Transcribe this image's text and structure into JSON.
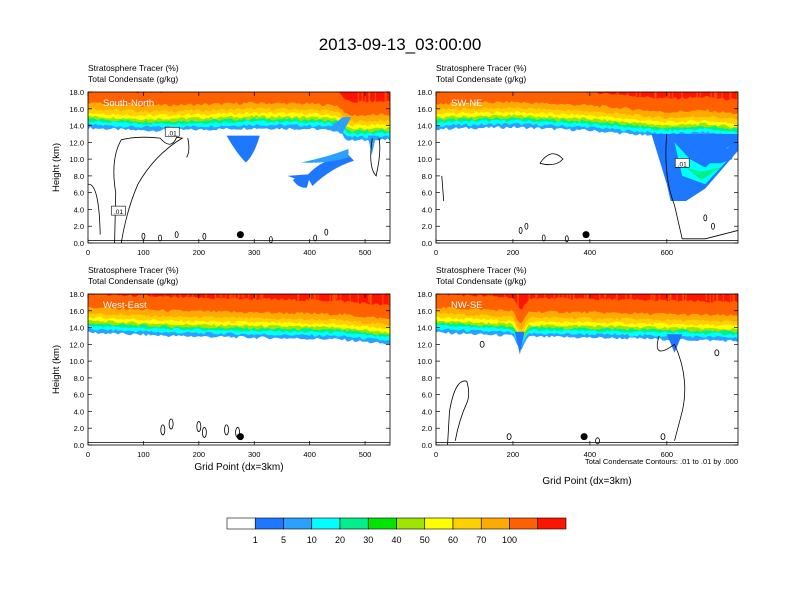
{
  "title": "2013-09-13_03:00:00",
  "footnote": "Total Condensate Contours: .01 to .01 by .000",
  "colorbar": {
    "colors": [
      "#ffffff",
      "#1e78ff",
      "#2ba0ff",
      "#00ffff",
      "#00f08c",
      "#00e600",
      "#9ee600",
      "#ffff00",
      "#ffd000",
      "#ffaa00",
      "#ff6000",
      "#ff1400"
    ],
    "labels": [
      "1",
      "5",
      "10",
      "20",
      "30",
      "40",
      "50",
      "60",
      "70",
      "100"
    ]
  },
  "chart_data": [
    {
      "type": "heatmap",
      "panel": "top-left",
      "label": "South-North",
      "field_title": "Stratosphere Tracer   (%)",
      "contour_title": "Total Condensate   (g/kg)",
      "ylabel": "Height (km)",
      "xlabel": "",
      "xlim": [
        0,
        545
      ],
      "ylim": [
        0,
        18
      ],
      "xticks": [
        "0",
        "100",
        "200",
        "300",
        "400",
        "500"
      ],
      "yticks": [
        "0.0",
        "2.0",
        "4.0",
        "6.0",
        "8.0",
        "10.0",
        "12.0",
        "14.0",
        "16.0",
        "18.0"
      ],
      "tropopause_km": [
        [
          0,
          14.5
        ],
        [
          100,
          14.2
        ],
        [
          200,
          14.3
        ],
        [
          300,
          14.5
        ],
        [
          400,
          14.4
        ],
        [
          450,
          14.2
        ],
        [
          470,
          13.0
        ],
        [
          545,
          13.1
        ]
      ],
      "contour_labels": [
        {
          "x": 55,
          "y": 3.8,
          "text": ".01"
        },
        {
          "x": 152,
          "y": 13.2,
          "text": ".01"
        }
      ],
      "marker": {
        "x": 275,
        "y": 1.0
      }
    },
    {
      "type": "heatmap",
      "panel": "top-right",
      "label": "SW-NE",
      "field_title": "Stratosphere Tracer   (%)",
      "contour_title": "Total Condensate   (g/kg)",
      "ylabel": "",
      "xlabel": "",
      "xlim": [
        0,
        785
      ],
      "ylim": [
        0,
        18
      ],
      "xticks": [
        "0",
        "200",
        "400",
        "600"
      ],
      "yticks": [
        "0.0",
        "2.0",
        "4.0",
        "6.0",
        "8.0",
        "10.0",
        "12.0",
        "14.0",
        "16.0",
        "18.0"
      ],
      "tropopause_km": [
        [
          0,
          14.4
        ],
        [
          200,
          14.6
        ],
        [
          400,
          14.2
        ],
        [
          600,
          13.4
        ],
        [
          700,
          13.6
        ],
        [
          785,
          13.2
        ]
      ],
      "contour_labels": [
        {
          "x": 640,
          "y": 9.5,
          "text": ".01"
        }
      ],
      "marker": {
        "x": 390,
        "y": 1.0
      }
    },
    {
      "type": "heatmap",
      "panel": "bottom-left",
      "label": "West-East",
      "field_title": "Stratosphere Tracer   (%)",
      "contour_title": "Total Condensate   (g/kg)",
      "ylabel": "Height (km)",
      "xlabel": "Grid Point (dx=3km)",
      "xlim": [
        0,
        545
      ],
      "ylim": [
        0,
        18
      ],
      "xticks": [
        "0",
        "100",
        "200",
        "300",
        "400",
        "500"
      ],
      "yticks": [
        "0.0",
        "2.0",
        "4.0",
        "6.0",
        "8.0",
        "10.0",
        "12.0",
        "14.0",
        "16.0",
        "18.0"
      ],
      "tropopause_km": [
        [
          0,
          14.2
        ],
        [
          150,
          13.8
        ],
        [
          300,
          13.6
        ],
        [
          450,
          13.4
        ],
        [
          545,
          12.8
        ]
      ],
      "contour_labels": [],
      "marker": {
        "x": 275,
        "y": 1.0
      }
    },
    {
      "type": "heatmap",
      "panel": "bottom-right",
      "label": "NW-SE",
      "field_title": "Stratosphere Tracer   (%)",
      "contour_title": "Total Condensate   (g/kg)",
      "ylabel": "",
      "xlabel": "Grid Point (dx=3km)",
      "xlim": [
        0,
        785
      ],
      "ylim": [
        0,
        18
      ],
      "xticks": [
        "0",
        "200",
        "400",
        "600"
      ],
      "yticks": [
        "0.0",
        "2.0",
        "4.0",
        "6.0",
        "8.0",
        "10.0",
        "12.0",
        "14.0",
        "16.0",
        "18.0"
      ],
      "tropopause_km": [
        [
          0,
          14.2
        ],
        [
          200,
          13.8
        ],
        [
          220,
          12.0
        ],
        [
          240,
          13.7
        ],
        [
          400,
          13.6
        ],
        [
          600,
          13.4
        ],
        [
          785,
          13.2
        ]
      ],
      "contour_labels": [],
      "marker": {
        "x": 385,
        "y": 1.0
      }
    }
  ]
}
